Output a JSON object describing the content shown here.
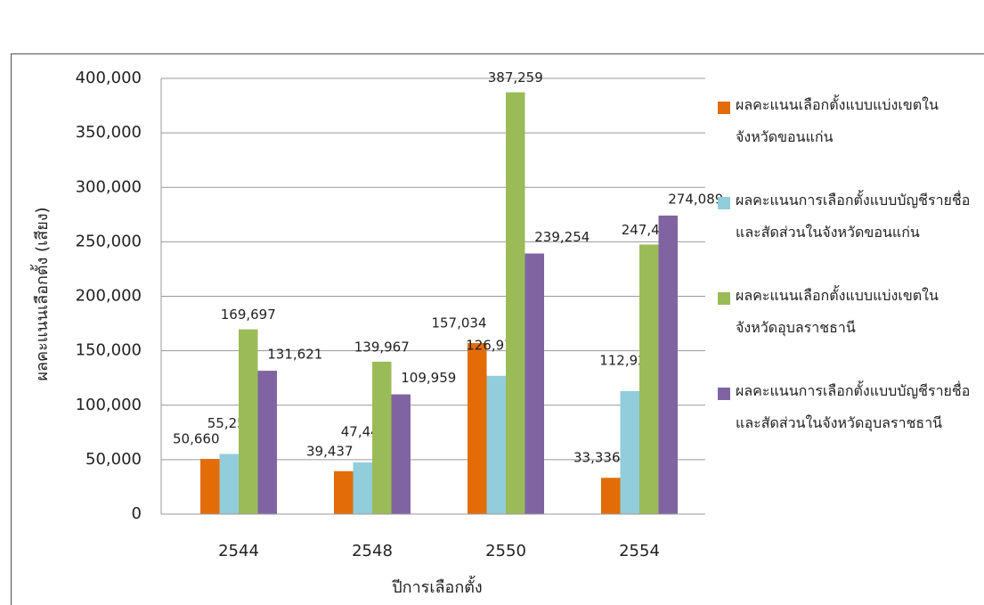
{
  "chart_data": {
    "type": "bar",
    "y_label": "ผลคะแนนเลือกตั้ง (เสียง)",
    "x_label": "ปีการเลือกตั้ง",
    "categories": [
      "2544",
      "2548",
      "2550",
      "2554"
    ],
    "series": [
      {
        "name": "ผลคะแนนเลือกตั้งแบบแบ่งเขตในจังหวัดขอนแก่น",
        "color": "#e36c09",
        "values": [
          50660,
          39437,
          157034,
          33336
        ],
        "value_labels": [
          "50,660",
          "39,437",
          "157,034",
          "33,336"
        ]
      },
      {
        "name": "ผลคะแนนการเลือกตั้งแบบบัญชีรายชื่อและสัดส่วนในจังหวัดขอนแก่น",
        "color": "#92cddc",
        "values": [
          55256,
          47440,
          126978,
          112922
        ],
        "value_labels": [
          "55,256",
          "47,440",
          "126,978",
          "112,922"
        ]
      },
      {
        "name": "ผลคะแนนเลือกตั้งแบบแบ่งเขตในจังหวัดอุบลราชธานี",
        "color": "#9bbb59",
        "values": [
          169697,
          139967,
          387259,
          247493
        ],
        "value_labels": [
          "169,697",
          "139,967",
          "387,259",
          "247,493"
        ]
      },
      {
        "name": "ผลคะแนนการเลือกตั้งแบบบัญชีรายชื่อและสัดส่วนในจังหวัดอุบลราชธานี",
        "color": "#8064a2",
        "values": [
          131621,
          109959,
          239254,
          274089
        ],
        "value_labels": [
          "131,621",
          "109,959",
          "239,254",
          "274,089"
        ]
      }
    ],
    "ylim": [
      0,
      400000
    ],
    "yticks": [
      0,
      {
        "value": 50000,
        "label": "50,000"
      },
      {
        "value": 100000,
        "label": "100,000"
      },
      {
        "value": 150000,
        "label": "150,000"
      },
      {
        "value": 200000,
        "label": "200,000"
      },
      {
        "value": 250000,
        "label": "250,000"
      },
      {
        "value": 300000,
        "label": "300,000"
      },
      {
        "value": 350000,
        "label": "350,000"
      },
      {
        "value": 400000,
        "label": "400,000"
      }
    ],
    "grid": true,
    "legend": "right"
  }
}
